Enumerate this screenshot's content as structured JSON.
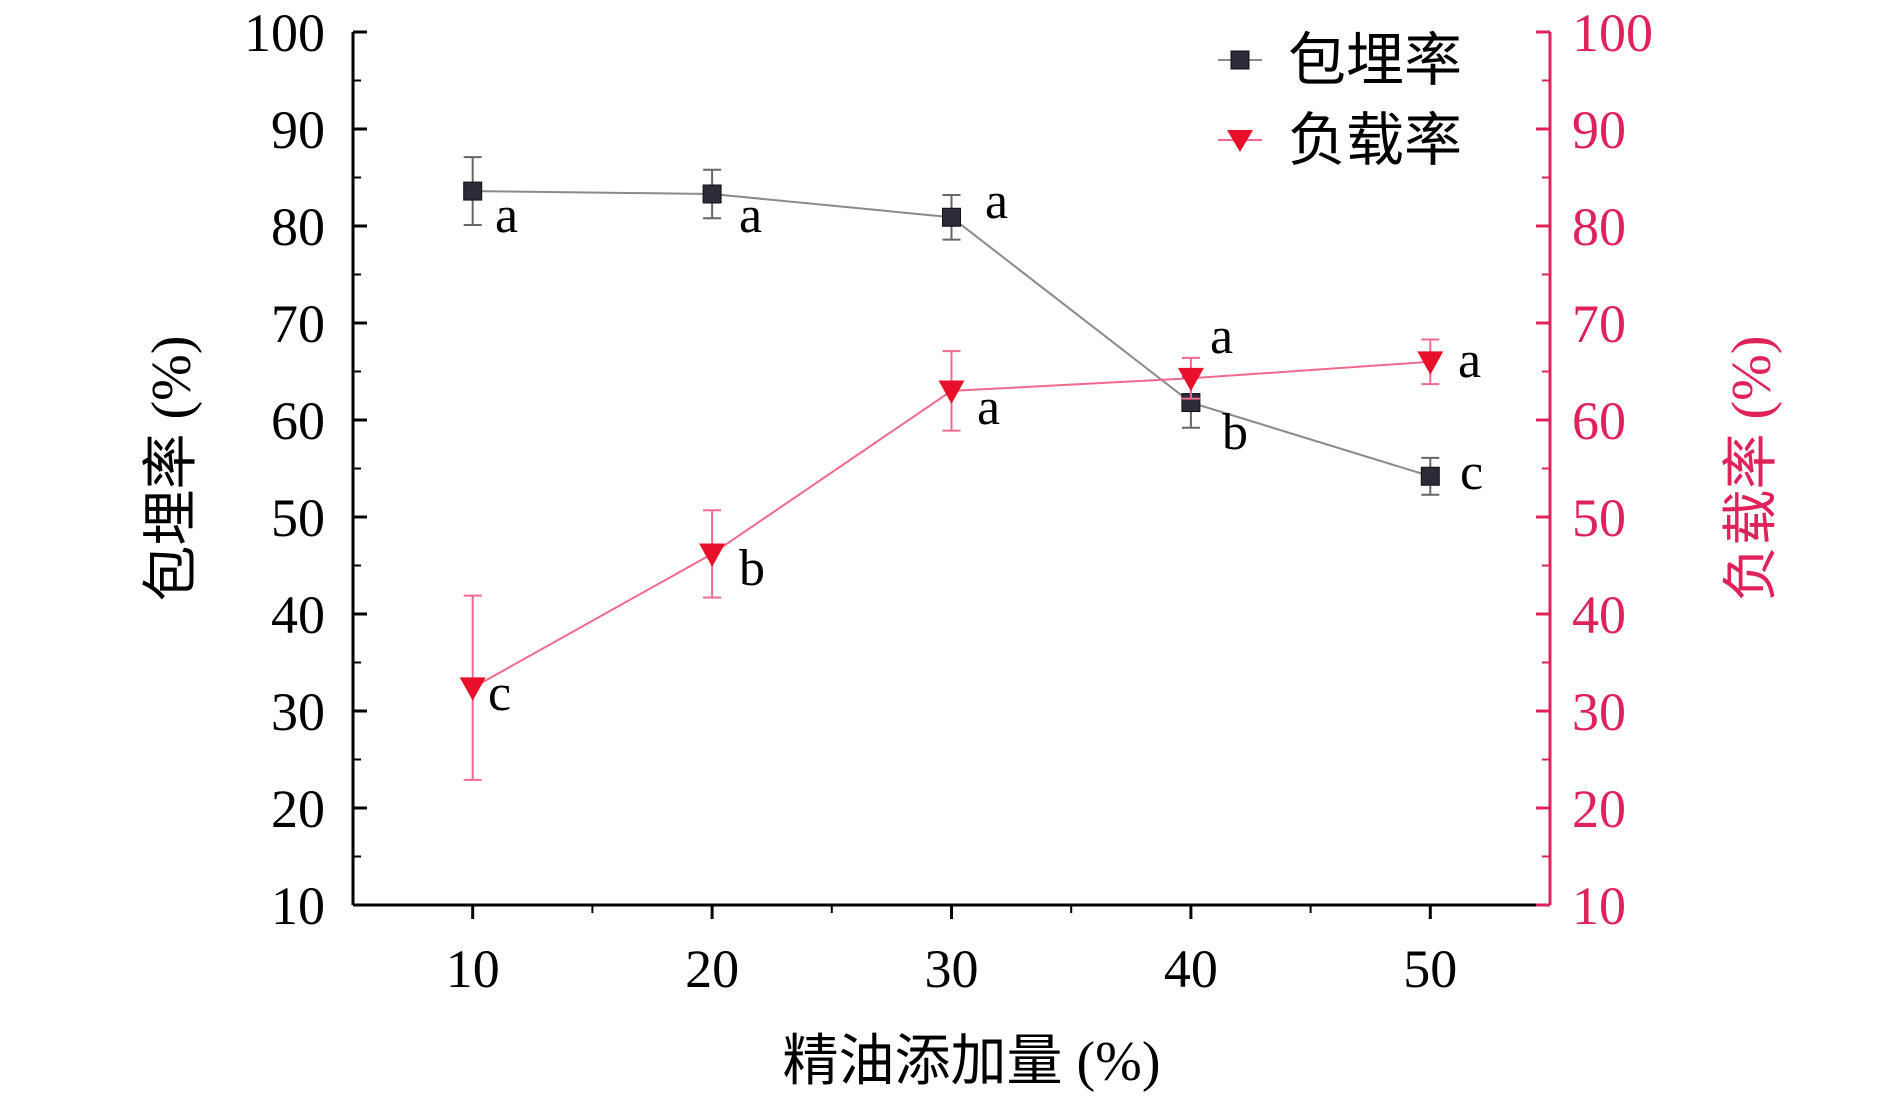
{
  "chart_data": {
    "type": "line",
    "x": [
      10,
      20,
      30,
      40,
      50
    ],
    "xlabel": "精油添加量 (%)",
    "ylabel_left": "包埋率 (%)",
    "ylabel_right": "负载率 (%)",
    "xlim": [
      5,
      55
    ],
    "ylim_left": [
      10,
      100
    ],
    "ylim_right": [
      10,
      100
    ],
    "xticks": [
      10,
      20,
      30,
      40,
      50
    ],
    "yticks": [
      10,
      20,
      30,
      40,
      50,
      60,
      70,
      80,
      90,
      100
    ],
    "grid": false,
    "legend_position": "top-right",
    "series": [
      {
        "name": "包埋率",
        "axis": "left",
        "marker": "square",
        "color": "#2b2b3a",
        "line_color": "#8a8a8a",
        "values": [
          83.6,
          83.3,
          80.9,
          61.8,
          54.2
        ],
        "errors": [
          3.5,
          2.5,
          2.3,
          2.6,
          1.9
        ],
        "letters": [
          "a",
          "a",
          "a",
          "b",
          "c"
        ]
      },
      {
        "name": "负载率",
        "axis": "right",
        "marker": "triangle-down",
        "color": "#e8102a",
        "line_color": "#f06a8e",
        "values": [
          32.4,
          46.2,
          63.0,
          64.3,
          66.0
        ],
        "errors": [
          9.5,
          4.5,
          4.1,
          2.1,
          2.3
        ],
        "letters": [
          "c",
          "b",
          "a",
          "a",
          "a"
        ]
      }
    ],
    "right_axis_color": "#e0225a"
  }
}
